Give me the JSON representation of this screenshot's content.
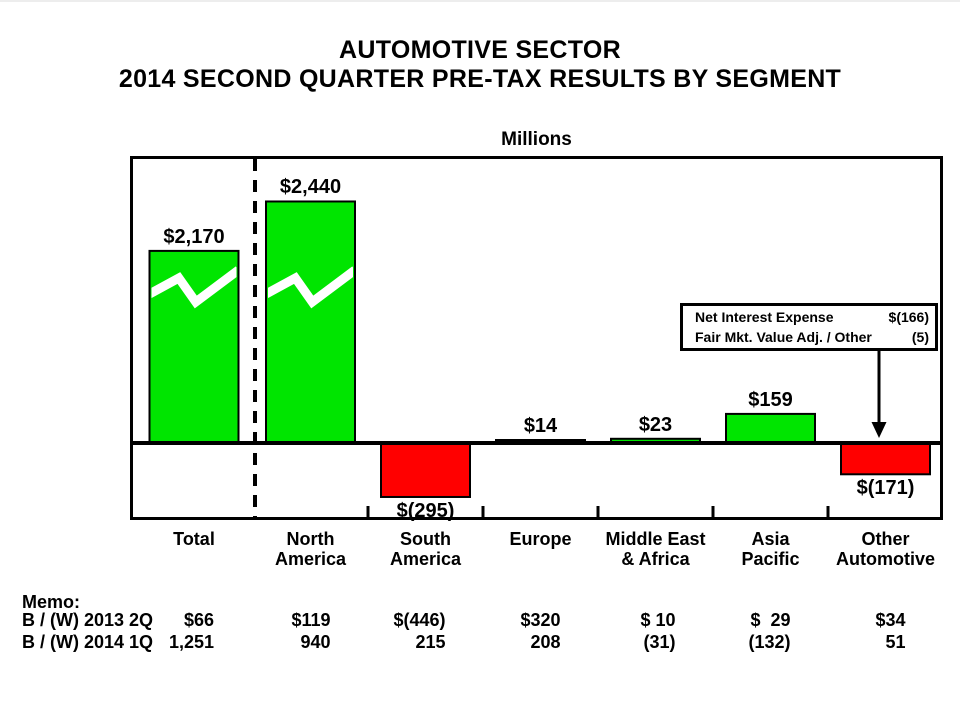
{
  "page": {
    "background": "#ffffff",
    "text_color": "#000000"
  },
  "title": {
    "line1": "AUTOMOTIVE SECTOR",
    "line2": "2014 SECOND QUARTER PRE-TAX RESULTS BY SEGMENT"
  },
  "chart": {
    "units_label": "Millions"
  },
  "chart_data": {
    "type": "bar",
    "title": "Automotive Sector 2014 Second Quarter Pre-Tax Results by Segment",
    "ylabel": "Millions",
    "categories": [
      "Total",
      "North America",
      "South America",
      "Europe",
      "Middle East & Africa",
      "Asia Pacific",
      "Other Automotive"
    ],
    "values": [
      2170,
      2440,
      -295,
      14,
      23,
      159,
      -171
    ],
    "value_labels": [
      "$2,170",
      "$2,440",
      "$(295)",
      "$14",
      "$23",
      "$159",
      "$(171)"
    ],
    "axis_label_lines": [
      [
        "Total"
      ],
      [
        "North",
        "America"
      ],
      [
        "South",
        "America"
      ],
      [
        "Europe"
      ],
      [
        "Middle East",
        "& Africa"
      ],
      [
        "Asia",
        "Pacific"
      ],
      [
        "Other",
        "Automotive"
      ]
    ],
    "axis_break_indices": [
      0,
      1
    ],
    "separator_after_index": 0,
    "positive_color": "#00e500",
    "negative_color": "#ff0000",
    "frame_color": "#000000",
    "grid": "off",
    "legend": "none",
    "baseline": 0
  },
  "callout": {
    "rows": [
      {
        "label": "Net Interest Expense",
        "value": "$(166)"
      },
      {
        "label": "Fair Mkt. Value Adj. / Other",
        "value": "(5)"
      }
    ],
    "points_to": "Other Automotive"
  },
  "memo": {
    "heading": "Memo:",
    "rows": [
      {
        "label": "B / (W) 2013 2Q",
        "values": [
          "$66",
          "$119",
          "$(446)",
          "$320",
          "$ 10",
          "$  29",
          "$34"
        ],
        "numeric": [
          66,
          119,
          -446,
          320,
          10,
          29,
          34
        ]
      },
      {
        "label": "B / (W) 2014 1Q",
        "values": [
          "1,251",
          "940",
          "215",
          "208",
          "(31)",
          "(132)",
          "51"
        ],
        "numeric": [
          1251,
          940,
          215,
          208,
          -31,
          -132,
          51
        ]
      }
    ]
  }
}
